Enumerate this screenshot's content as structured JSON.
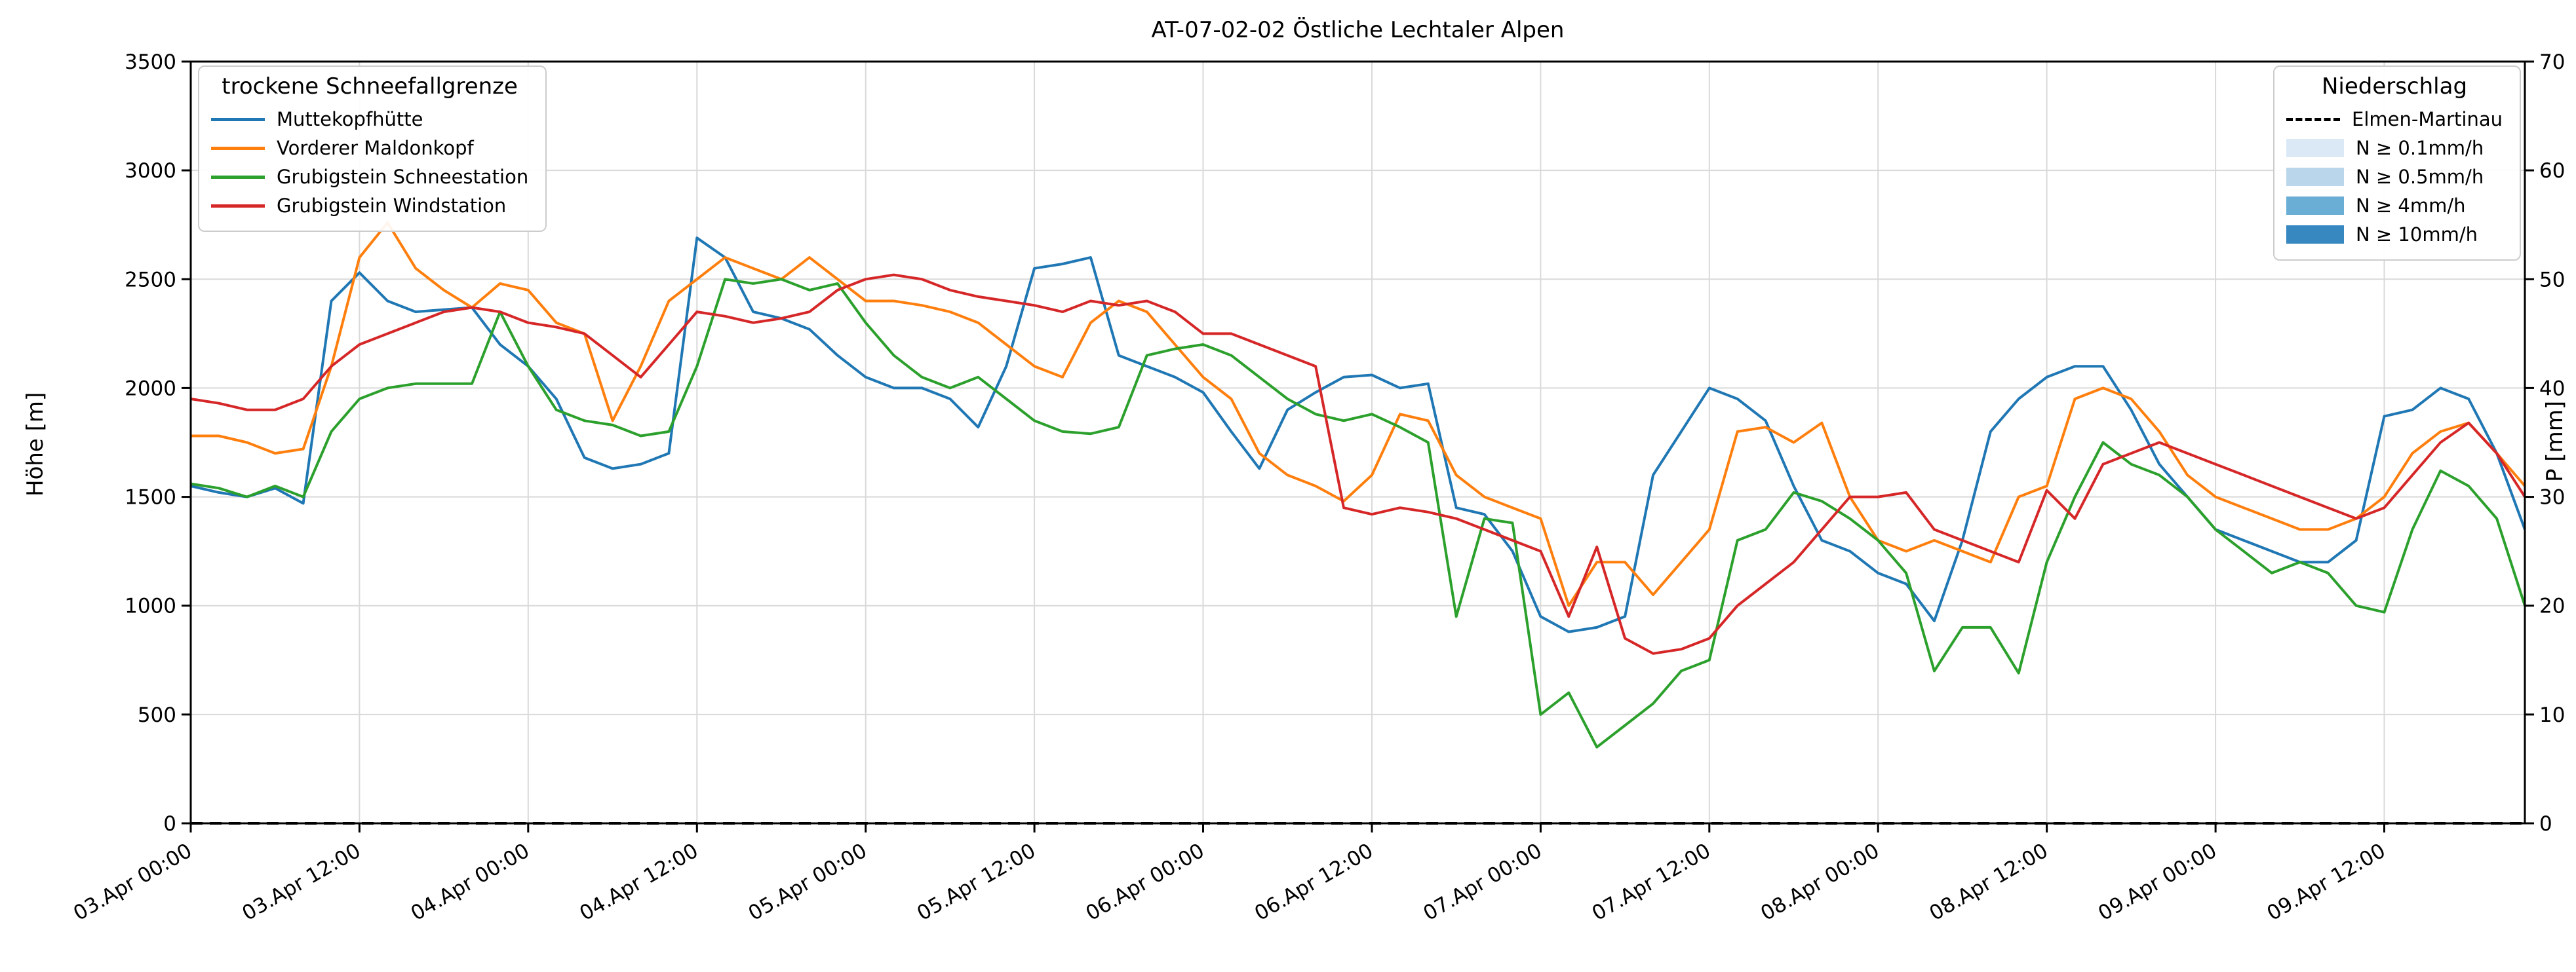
{
  "chart_data": {
    "type": "line",
    "title": "AT-07-02-02 Östliche Lechtaler Alpen",
    "ylabel_left": "Höhe [m]",
    "ylabel_right": "P [mm]",
    "ylim_left": [
      0,
      3500
    ],
    "ylim_right": [
      0,
      70
    ],
    "y_ticks_left": [
      0,
      500,
      1000,
      1500,
      2000,
      2500,
      3000,
      3500
    ],
    "y_ticks_right": [
      0,
      10,
      20,
      30,
      40,
      50,
      60,
      70
    ],
    "grid": true,
    "x_domain_hours": [
      0,
      166
    ],
    "x_hours": {
      "start": 0,
      "step": 2,
      "count": 84
    },
    "x_ticks": [
      {
        "hour": 0,
        "label": "03.Apr 00:00"
      },
      {
        "hour": 12,
        "label": "03.Apr 12:00"
      },
      {
        "hour": 24,
        "label": "04.Apr 00:00"
      },
      {
        "hour": 36,
        "label": "04.Apr 12:00"
      },
      {
        "hour": 48,
        "label": "05.Apr 00:00"
      },
      {
        "hour": 60,
        "label": "05.Apr 12:00"
      },
      {
        "hour": 72,
        "label": "06.Apr 00:00"
      },
      {
        "hour": 84,
        "label": "06.Apr 12:00"
      },
      {
        "hour": 96,
        "label": "07.Apr 00:00"
      },
      {
        "hour": 108,
        "label": "07.Apr 12:00"
      },
      {
        "hour": 120,
        "label": "08.Apr 00:00"
      },
      {
        "hour": 132,
        "label": "08.Apr 12:00"
      },
      {
        "hour": 144,
        "label": "09.Apr 00:00"
      },
      {
        "hour": 156,
        "label": "09.Apr 12:00"
      }
    ],
    "legend_left_title": "trockene Schneefallgrenze",
    "legend_right_title": "Niederschlag",
    "series": [
      {
        "name": "Muttekopfhütte",
        "color": "#1f77b4",
        "values": [
          1550,
          1520,
          1500,
          1540,
          1470,
          2400,
          2530,
          2400,
          2350,
          2360,
          2370,
          2200,
          2100,
          1950,
          1680,
          1630,
          1650,
          1700,
          2690,
          2600,
          2350,
          2320,
          2270,
          2150,
          2050,
          2000,
          2000,
          1950,
          1820,
          2100,
          2550,
          2570,
          2600,
          2150,
          2100,
          2050,
          1980,
          1800,
          1630,
          1900,
          1980,
          2050,
          2060,
          2000,
          2020,
          1450,
          1420,
          1250,
          950,
          880,
          900,
          950,
          1600,
          1800,
          2000,
          1950,
          1850,
          1550,
          1300,
          1250,
          1150,
          1100,
          930,
          1300,
          1800,
          1950,
          2050,
          2100,
          2100,
          1900,
          1650,
          1500,
          1350,
          1300,
          1250,
          1200,
          1200,
          1300,
          1870,
          1900,
          2000,
          1950,
          1700,
          1350
        ]
      },
      {
        "name": "Vorderer Maldonkopf",
        "color": "#ff7f0e",
        "values": [
          1780,
          1780,
          1750,
          1700,
          1720,
          2100,
          2600,
          2760,
          2550,
          2450,
          2370,
          2480,
          2450,
          2300,
          2250,
          1850,
          2100,
          2400,
          2500,
          2600,
          2550,
          2500,
          2600,
          2500,
          2400,
          2400,
          2380,
          2350,
          2300,
          2200,
          2100,
          2050,
          2300,
          2400,
          2350,
          2200,
          2050,
          1950,
          1700,
          1600,
          1550,
          1480,
          1600,
          1880,
          1850,
          1600,
          1500,
          1450,
          1400,
          1000,
          1200,
          1200,
          1050,
          1200,
          1350,
          1800,
          1820,
          1750,
          1840,
          1500,
          1300,
          1250,
          1300,
          1250,
          1200,
          1500,
          1550,
          1950,
          2000,
          1950,
          1800,
          1600,
          1500,
          1450,
          1400,
          1350,
          1350,
          1400,
          1500,
          1700,
          1800,
          1840,
          1700,
          1550
        ]
      },
      {
        "name": "Grubigstein Schneestation",
        "color": "#2ca02c",
        "values": [
          1560,
          1540,
          1500,
          1550,
          1500,
          1800,
          1950,
          2000,
          2020,
          2020,
          2020,
          2350,
          2100,
          1900,
          1850,
          1830,
          1780,
          1800,
          2100,
          2500,
          2480,
          2500,
          2450,
          2480,
          2300,
          2150,
          2050,
          2000,
          2050,
          1950,
          1850,
          1800,
          1790,
          1820,
          2150,
          2180,
          2200,
          2150,
          2050,
          1950,
          1880,
          1850,
          1880,
          1820,
          1750,
          950,
          1400,
          1380,
          500,
          600,
          350,
          450,
          550,
          700,
          750,
          1300,
          1350,
          1520,
          1480,
          1400,
          1300,
          1150,
          700,
          900,
          900,
          690,
          1200,
          1500,
          1750,
          1650,
          1600,
          1500,
          1350,
          1250,
          1150,
          1200,
          1150,
          1000,
          970,
          1350,
          1620,
          1550,
          1400,
          1000
        ]
      },
      {
        "name": "Grubigstein Windstation",
        "color": "#d62728",
        "values": [
          1950,
          1930,
          1900,
          1900,
          1950,
          2100,
          2200,
          2250,
          2300,
          2350,
          2370,
          2350,
          2300,
          2280,
          2250,
          2150,
          2050,
          2200,
          2350,
          2330,
          2300,
          2320,
          2350,
          2450,
          2500,
          2520,
          2500,
          2450,
          2420,
          2400,
          2380,
          2350,
          2400,
          2380,
          2400,
          2350,
          2250,
          2250,
          2200,
          2150,
          2100,
          1450,
          1420,
          1450,
          1430,
          1400,
          1350,
          1300,
          1250,
          950,
          1270,
          850,
          780,
          800,
          850,
          1000,
          1100,
          1200,
          1350,
          1500,
          1500,
          1520,
          1350,
          1300,
          1250,
          1200,
          1530,
          1400,
          1650,
          1700,
          1750,
          1700,
          1650,
          1600,
          1550,
          1500,
          1450,
          1400,
          1450,
          1600,
          1750,
          1840,
          1700,
          1500
        ]
      }
    ],
    "precipitation": {
      "name": "Elmen-Martinau",
      "color": "#000000",
      "line_style": "dashed",
      "x_hours": [
        0,
        166
      ],
      "values_mm": [
        0,
        0
      ],
      "levels": [
        {
          "label": "N ≥ 0.1mm/h",
          "color": "#dbe9f6"
        },
        {
          "label": "N ≥ 0.5mm/h",
          "color": "#bad6eb"
        },
        {
          "label": "N ≥ 4mm/h",
          "color": "#6aaed6"
        },
        {
          "label": "N ≥ 10mm/h",
          "color": "#3787c0"
        }
      ]
    }
  }
}
